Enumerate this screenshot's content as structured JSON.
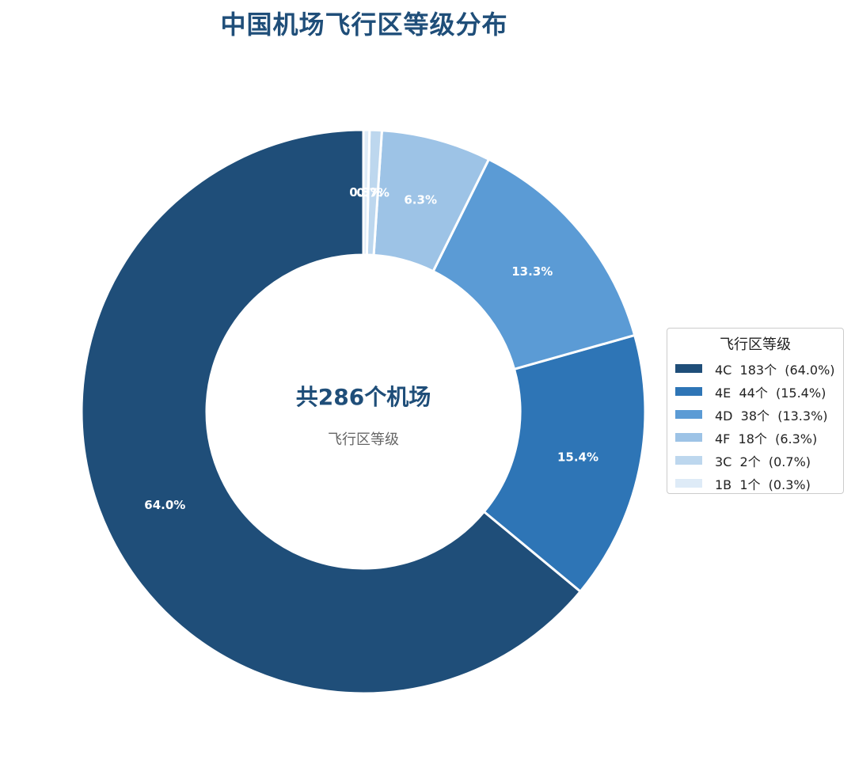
{
  "chart_data": {
    "type": "pie",
    "title": "中国机场飞行区等级分布",
    "center_text": "共286个机场",
    "center_subtext": "飞行区等级",
    "legend_title": "飞行区等级",
    "legend_placement": "right",
    "slices": [
      {
        "category": "4C",
        "value": 183,
        "pct_label": "64.0%",
        "legend": "4C  183个  (64.0%)",
        "color": "#1f4e79"
      },
      {
        "category": "4E",
        "value": 44,
        "pct_label": "15.4%",
        "legend": "4E  44个  (15.4%)",
        "color": "#2e75b6"
      },
      {
        "category": "4D",
        "value": 38,
        "pct_label": "13.3%",
        "legend": "4D  38个  (13.3%)",
        "color": "#5b9bd5"
      },
      {
        "category": "4F",
        "value": 18,
        "pct_label": "6.3%",
        "legend": "4F  18个  (6.3%)",
        "color": "#9dc3e6"
      },
      {
        "category": "3C",
        "value": 2,
        "pct_label": "0.7%",
        "legend": "3C  2个  (0.7%)",
        "color": "#bdd7ee"
      },
      {
        "category": "1B",
        "value": 1,
        "pct_label": "0.3%",
        "legend": "1B  1个  (0.3%)",
        "color": "#deebf7"
      }
    ]
  }
}
